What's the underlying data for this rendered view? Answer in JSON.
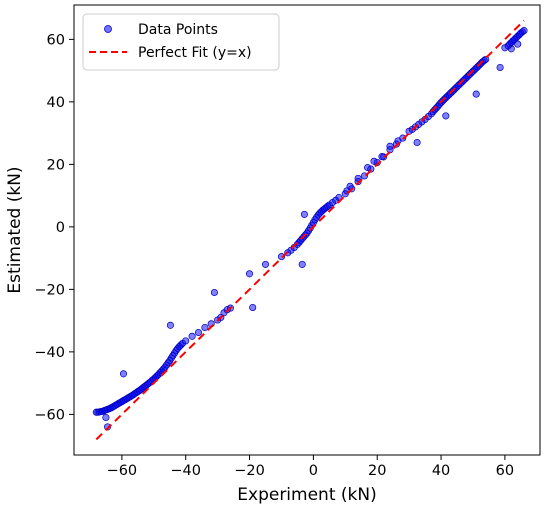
{
  "chart_data": {
    "type": "scatter",
    "title": "",
    "xlabel": "Experiment (kN)",
    "ylabel": "Estimated (kN)",
    "xlim": [
      -75,
      71
    ],
    "ylim": [
      -73,
      71
    ],
    "xticks": [
      -60,
      -40,
      -20,
      0,
      20,
      40,
      60
    ],
    "yticks": [
      -60,
      -40,
      -20,
      0,
      20,
      40,
      60
    ],
    "grid": false,
    "legend_position": "top-left",
    "series": [
      {
        "name": "Data Points",
        "kind": "scatter",
        "color": "#0000ff",
        "points": [
          [
            -68.0,
            -59.3
          ],
          [
            -67.5,
            -59.3
          ],
          [
            -67.0,
            -59.2
          ],
          [
            -66.5,
            -59.1
          ],
          [
            -66.0,
            -59.0
          ],
          [
            -65.5,
            -58.8
          ],
          [
            -65.0,
            -58.6
          ],
          [
            -64.5,
            -58.4
          ],
          [
            -64.0,
            -58.2
          ],
          [
            -63.5,
            -58.0
          ],
          [
            -63.0,
            -57.7
          ],
          [
            -62.5,
            -57.4
          ],
          [
            -62.0,
            -57.1
          ],
          [
            -61.5,
            -56.8
          ],
          [
            -61.0,
            -56.5
          ],
          [
            -60.5,
            -56.2
          ],
          [
            -60.0,
            -55.9
          ],
          [
            -59.5,
            -55.6
          ],
          [
            -59.0,
            -55.3
          ],
          [
            -58.5,
            -55.0
          ],
          [
            -58.0,
            -54.7
          ],
          [
            -57.5,
            -54.4
          ],
          [
            -57.0,
            -54.1
          ],
          [
            -56.5,
            -53.8
          ],
          [
            -56.0,
            -53.4
          ],
          [
            -55.5,
            -53.1
          ],
          [
            -55.0,
            -52.7
          ],
          [
            -54.5,
            -52.4
          ],
          [
            -54.0,
            -52.0
          ],
          [
            -53.5,
            -51.6
          ],
          [
            -53.0,
            -51.2
          ],
          [
            -52.5,
            -50.8
          ],
          [
            -52.0,
            -50.4
          ],
          [
            -51.5,
            -50.0
          ],
          [
            -51.0,
            -49.6
          ],
          [
            -50.5,
            -49.1
          ],
          [
            -50.0,
            -48.7
          ],
          [
            -49.5,
            -48.2
          ],
          [
            -49.0,
            -47.7
          ],
          [
            -48.5,
            -47.2
          ],
          [
            -48.0,
            -46.6
          ],
          [
            -47.5,
            -46.1
          ],
          [
            -47.0,
            -45.5
          ],
          [
            -46.5,
            -44.9
          ],
          [
            -46.0,
            -44.2
          ],
          [
            -45.5,
            -43.5
          ],
          [
            -45.0,
            -42.8
          ],
          [
            -44.5,
            -42.0
          ],
          [
            -44.0,
            -41.2
          ],
          [
            -43.5,
            -40.4
          ],
          [
            -43.0,
            -39.6
          ],
          [
            -42.5,
            -38.9
          ],
          [
            -42.0,
            -38.3
          ],
          [
            -41.5,
            -37.8
          ],
          [
            -41.0,
            -37.3
          ],
          [
            -40.0,
            -36.5
          ],
          [
            -38.0,
            -35.0
          ],
          [
            -36.0,
            -33.8
          ],
          [
            -34.0,
            -32.2
          ],
          [
            -32.0,
            -31.0
          ],
          [
            -30.0,
            -29.8
          ],
          [
            -29.0,
            -29.0
          ],
          [
            -28.0,
            -27.5
          ],
          [
            -27.0,
            -26.5
          ],
          [
            -26.0,
            -26.0
          ],
          [
            -8.0,
            -8.3
          ],
          [
            -7.0,
            -7.5
          ],
          [
            -6.0,
            -6.6
          ],
          [
            -5.0,
            -5.6
          ],
          [
            -4.5,
            -5.0
          ],
          [
            -4.0,
            -4.4
          ],
          [
            -3.5,
            -3.8
          ],
          [
            -3.0,
            -3.2
          ],
          [
            -2.5,
            -2.6
          ],
          [
            -2.0,
            -2.0
          ],
          [
            -1.5,
            -1.2
          ],
          [
            -1.0,
            -0.4
          ],
          [
            -0.5,
            0.5
          ],
          [
            0.0,
            1.4
          ],
          [
            0.5,
            2.3
          ],
          [
            1.0,
            3.1
          ],
          [
            1.5,
            3.8
          ],
          [
            2.0,
            4.4
          ],
          [
            2.5,
            4.9
          ],
          [
            3.0,
            5.4
          ],
          [
            3.5,
            5.8
          ],
          [
            4.0,
            6.2
          ],
          [
            4.5,
            6.6
          ],
          [
            5.0,
            7.0
          ],
          [
            6.0,
            7.8
          ],
          [
            7.0,
            8.5
          ],
          [
            8.0,
            9.4
          ],
          [
            10.0,
            10.6
          ],
          [
            12.0,
            12.2
          ],
          [
            14.0,
            14.5
          ],
          [
            16.0,
            16.3
          ],
          [
            18.0,
            18.5
          ],
          [
            20.0,
            20.6
          ],
          [
            22.0,
            22.4
          ],
          [
            24.0,
            24.7
          ],
          [
            26.0,
            26.5
          ],
          [
            28.0,
            28.4
          ],
          [
            30.0,
            30.6
          ],
          [
            31.0,
            31.2
          ],
          [
            32.0,
            32.0
          ],
          [
            33.0,
            32.8
          ],
          [
            34.0,
            33.6
          ],
          [
            35.0,
            34.4
          ],
          [
            36.0,
            35.3
          ],
          [
            37.0,
            36.2
          ],
          [
            37.5,
            36.9
          ],
          [
            38.0,
            37.5
          ],
          [
            38.5,
            38.0
          ],
          [
            39.0,
            38.6
          ],
          [
            39.5,
            39.2
          ],
          [
            40.0,
            39.8
          ],
          [
            40.5,
            40.3
          ],
          [
            41.0,
            40.8
          ],
          [
            41.5,
            41.3
          ],
          [
            42.0,
            41.8
          ],
          [
            42.5,
            42.3
          ],
          [
            43.0,
            42.8
          ],
          [
            43.5,
            43.3
          ],
          [
            44.0,
            43.8
          ],
          [
            44.5,
            44.3
          ],
          [
            45.0,
            44.8
          ],
          [
            45.5,
            45.3
          ],
          [
            46.0,
            45.8
          ],
          [
            46.5,
            46.3
          ],
          [
            47.0,
            46.8
          ],
          [
            47.5,
            47.3
          ],
          [
            48.0,
            47.8
          ],
          [
            48.5,
            48.3
          ],
          [
            49.0,
            48.8
          ],
          [
            49.5,
            49.3
          ],
          [
            50.0,
            49.8
          ],
          [
            50.5,
            50.3
          ],
          [
            51.0,
            50.8
          ],
          [
            51.5,
            51.3
          ],
          [
            52.0,
            51.8
          ],
          [
            52.5,
            52.3
          ],
          [
            53.0,
            52.8
          ],
          [
            53.5,
            53.2
          ],
          [
            54.0,
            53.6
          ],
          [
            60.0,
            57.3
          ],
          [
            61.0,
            57.9
          ],
          [
            61.5,
            58.5
          ],
          [
            62.0,
            59.0
          ],
          [
            62.5,
            59.5
          ],
          [
            63.0,
            60.0
          ],
          [
            63.5,
            60.5
          ],
          [
            64.0,
            61.0
          ],
          [
            64.5,
            61.5
          ],
          [
            65.0,
            62.0
          ],
          [
            65.5,
            62.4
          ],
          [
            66.0,
            62.8
          ],
          [
            -65.0,
            -61.0
          ],
          [
            -64.5,
            -64.0
          ],
          [
            -59.5,
            -47.0
          ],
          [
            -44.8,
            -31.5
          ],
          [
            -31.0,
            -21.0
          ],
          [
            -19.0,
            -25.8
          ],
          [
            -20.0,
            -15.0
          ],
          [
            -15.0,
            -12.0
          ],
          [
            -10.0,
            -9.5
          ],
          [
            -3.5,
            -12.0
          ],
          [
            -2.8,
            4.0
          ],
          [
            10.5,
            11.5
          ],
          [
            11.5,
            13.0
          ],
          [
            14.0,
            15.5
          ],
          [
            17.0,
            19.0
          ],
          [
            19.0,
            21.0
          ],
          [
            21.5,
            22.5
          ],
          [
            24.0,
            25.8
          ],
          [
            26.5,
            27.5
          ],
          [
            32.5,
            27.0
          ],
          [
            41.5,
            35.5
          ],
          [
            51.0,
            42.5
          ],
          [
            58.5,
            51.0
          ],
          [
            62.0,
            57.0
          ],
          [
            64.0,
            58.5
          ]
        ]
      },
      {
        "name": "Perfect Fit (y=x)",
        "kind": "line",
        "style": "dashed",
        "color": "#ff0000",
        "x": [
          -68,
          66
        ],
        "y": [
          -68,
          66
        ]
      }
    ]
  }
}
